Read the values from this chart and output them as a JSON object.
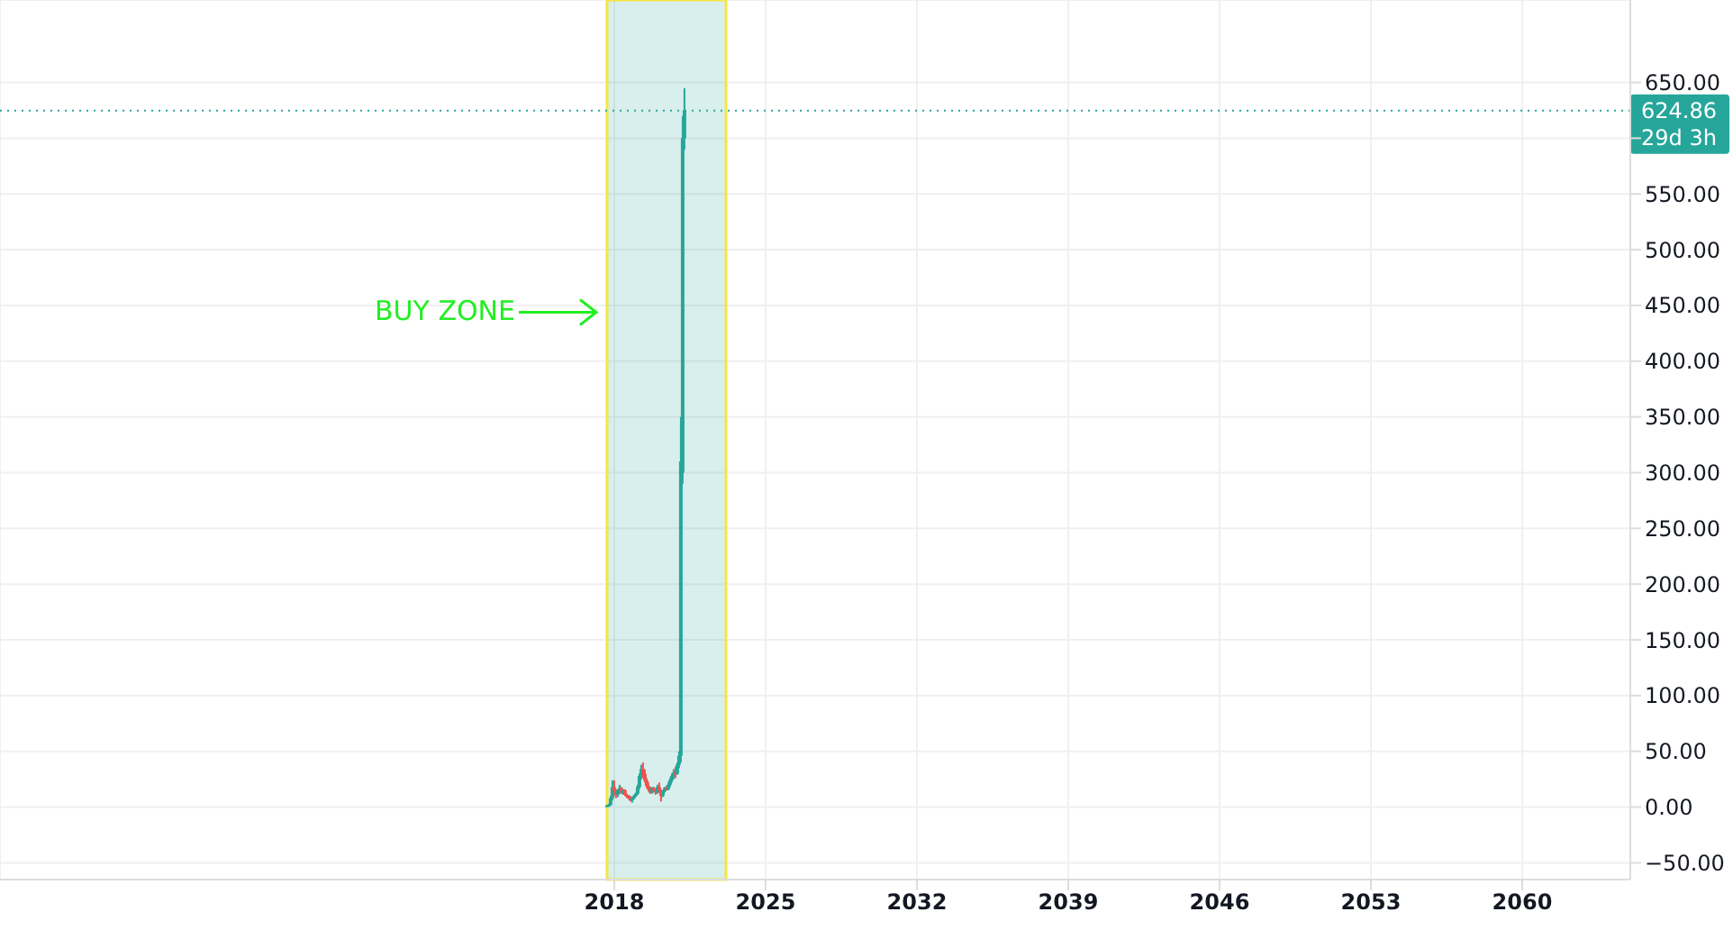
{
  "chart_data": {
    "type": "candlestick",
    "x": [
      "2017-09",
      "2017-10",
      "2017-11",
      "2017-12",
      "2018-01",
      "2018-02",
      "2018-03",
      "2018-04",
      "2018-05",
      "2018-06",
      "2018-07",
      "2018-08",
      "2018-09",
      "2018-10",
      "2018-11",
      "2018-12",
      "2019-01",
      "2019-02",
      "2019-03",
      "2019-04",
      "2019-05",
      "2019-06",
      "2019-07",
      "2019-08",
      "2019-09",
      "2019-10",
      "2019-11",
      "2019-12",
      "2020-01",
      "2020-02",
      "2020-03",
      "2020-04",
      "2020-05",
      "2020-06",
      "2020-07",
      "2020-08",
      "2020-09",
      "2020-10",
      "2020-11",
      "2020-12",
      "2021-01",
      "2021-02",
      "2021-03",
      "2021-04"
    ],
    "ohlc": [
      [
        1,
        2,
        0.5,
        1.5
      ],
      [
        1.5,
        3,
        1,
        2
      ],
      [
        2,
        10,
        1.5,
        8
      ],
      [
        8,
        24,
        6,
        18
      ],
      [
        18,
        24,
        10,
        14
      ],
      [
        14,
        16,
        8,
        11
      ],
      [
        11,
        16,
        9,
        15
      ],
      [
        15,
        20,
        12,
        17
      ],
      [
        17,
        18,
        12,
        13
      ],
      [
        13,
        16,
        11,
        15
      ],
      [
        15,
        16,
        10,
        11
      ],
      [
        11,
        12,
        8,
        10
      ],
      [
        10,
        11,
        7,
        9
      ],
      [
        9,
        10,
        5,
        6
      ],
      [
        6,
        9,
        4,
        8
      ],
      [
        8,
        11,
        7,
        10
      ],
      [
        10,
        13,
        9,
        12
      ],
      [
        12,
        20,
        11,
        18
      ],
      [
        18,
        30,
        16,
        28
      ],
      [
        28,
        38,
        25,
        34
      ],
      [
        34,
        40,
        26,
        30
      ],
      [
        30,
        34,
        22,
        24
      ],
      [
        24,
        26,
        17,
        19
      ],
      [
        19,
        22,
        14,
        16
      ],
      [
        16,
        18,
        12,
        13
      ],
      [
        13,
        18,
        12,
        17
      ],
      [
        17,
        18,
        14,
        15
      ],
      [
        15,
        16,
        11,
        13
      ],
      [
        13,
        20,
        12,
        18
      ],
      [
        18,
        22,
        13,
        15
      ],
      [
        15,
        16,
        5,
        10
      ],
      [
        10,
        15,
        9,
        14
      ],
      [
        14,
        18,
        13,
        17
      ],
      [
        17,
        19,
        15,
        16
      ],
      [
        16,
        22,
        15,
        20
      ],
      [
        20,
        26,
        18,
        24
      ],
      [
        24,
        30,
        22,
        28
      ],
      [
        28,
        34,
        25,
        31
      ],
      [
        31,
        36,
        26,
        30
      ],
      [
        30,
        40,
        29,
        38
      ],
      [
        38,
        50,
        35,
        46
      ],
      [
        46,
        350,
        40,
        310
      ],
      [
        300,
        620,
        290,
        600
      ],
      [
        600,
        645,
        590,
        624.86
      ]
    ],
    "colors": [
      "#26a69a",
      "#26a69a",
      "#26a69a",
      "#26a69a",
      "#ef5350",
      "#ef5350",
      "#26a69a",
      "#26a69a",
      "#ef5350",
      "#26a69a",
      "#ef5350",
      "#ef5350",
      "#ef5350",
      "#ef5350",
      "#26a69a",
      "#26a69a",
      "#26a69a",
      "#26a69a",
      "#26a69a",
      "#26a69a",
      "#ef5350",
      "#ef5350",
      "#ef5350",
      "#ef5350",
      "#ef5350",
      "#26a69a",
      "#ef5350",
      "#ef5350",
      "#26a69a",
      "#ef5350",
      "#ef5350",
      "#26a69a",
      "#26a69a",
      "#ef5350",
      "#26a69a",
      "#26a69a",
      "#26a69a",
      "#26a69a",
      "#ef5350",
      "#26a69a",
      "#26a69a",
      "#26a69a",
      "#26a69a",
      "#26a69a"
    ],
    "xlim": [
      "1989-08",
      "2065-01"
    ],
    "xticks": [
      "2018",
      "2025",
      "2032",
      "2039",
      "2046",
      "2053",
      "2060"
    ],
    "ylim": [
      -65,
      724
    ],
    "yticks": [
      {
        "value": -50,
        "label": "−50.00"
      },
      {
        "value": 0,
        "label": "0.00"
      },
      {
        "value": 50,
        "label": "50.00"
      },
      {
        "value": 100,
        "label": "100.00"
      },
      {
        "value": 150,
        "label": "150.00"
      },
      {
        "value": 200,
        "label": "200.00"
      },
      {
        "value": 250,
        "label": "250.00"
      },
      {
        "value": 300,
        "label": "300.00"
      },
      {
        "value": 350,
        "label": "350.00"
      },
      {
        "value": 400,
        "label": "400.00"
      },
      {
        "value": 450,
        "label": "450.00"
      },
      {
        "value": 500,
        "label": "500.00"
      },
      {
        "value": 550,
        "label": "550.00"
      },
      {
        "value": 600,
        "label": null
      },
      {
        "value": 650,
        "label": "650.00"
      }
    ],
    "grid": true,
    "ref_lines": [
      {
        "axis": "y",
        "value": 624.86,
        "label": "624.86",
        "color": "#26a69a",
        "line_style": "dotted"
      }
    ],
    "bands": [
      {
        "axis": "x",
        "from": "2017-09",
        "to": "2023-03",
        "label": "BUY ZONE",
        "color": "#26a69a"
      }
    ],
    "annotations": [
      "29d 3h"
    ]
  }
}
